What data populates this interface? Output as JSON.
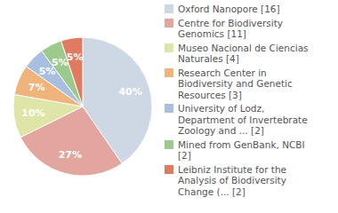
{
  "chart_data": {
    "type": "pie",
    "categories": [
      "Oxford Nanopore [16]",
      "Centre for Biodiversity Genomics [11]",
      "Museo Nacional de Ciencias Naturales [4]",
      "Research Center in Biodiversity and Genetic Resources [3]",
      "University of Lodz, Department of Invertebrate Zoology and ... [2]",
      "Mined from GenBank, NCBI [2]",
      "Leibniz Institute for the Analysis of Biodiversity Change (... [2]"
    ],
    "values": [
      40,
      27,
      10,
      7,
      5,
      5,
      5
    ],
    "value_labels": [
      "40%",
      "27%",
      "10%",
      "7%",
      "5%",
      "5%",
      "5%"
    ],
    "colors": [
      "#cdd8e4",
      "#e2a69e",
      "#dee5a6",
      "#f0b37b",
      "#a8bfe0",
      "#9cca8c",
      "#e07a60"
    ],
    "data_labels": true,
    "legend": "right"
  }
}
